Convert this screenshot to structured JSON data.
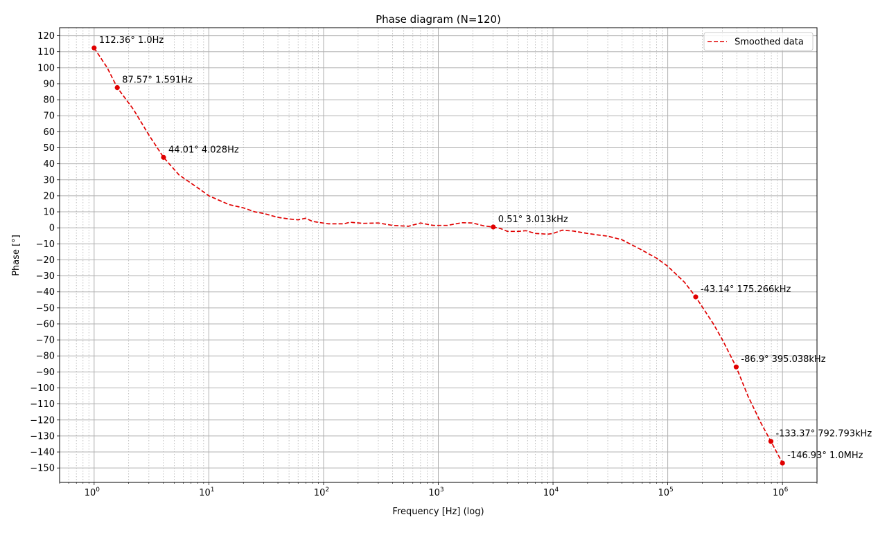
{
  "chart_data": {
    "type": "line",
    "title": "Phase diagram (N=120)",
    "xlabel": "Frequency [Hz] (log)",
    "ylabel": "Phase [°]",
    "xscale": "log",
    "xlim": [
      0.5,
      2000000
    ],
    "ylim": [
      -159,
      125
    ],
    "xticks": [
      {
        "value": 1,
        "base": "10",
        "exp": "0"
      },
      {
        "value": 10,
        "base": "10",
        "exp": "1"
      },
      {
        "value": 100,
        "base": "10",
        "exp": "2"
      },
      {
        "value": 1000,
        "base": "10",
        "exp": "3"
      },
      {
        "value": 10000,
        "base": "10",
        "exp": "4"
      },
      {
        "value": 100000,
        "base": "10",
        "exp": "5"
      },
      {
        "value": 1000000,
        "base": "10",
        "exp": "6"
      }
    ],
    "yticks": [
      {
        "value": 120,
        "label": "120"
      },
      {
        "value": 110,
        "label": "110"
      },
      {
        "value": 100,
        "label": "100"
      },
      {
        "value": 90,
        "label": "90"
      },
      {
        "value": 80,
        "label": "80"
      },
      {
        "value": 70,
        "label": "70"
      },
      {
        "value": 60,
        "label": "60"
      },
      {
        "value": 50,
        "label": "50"
      },
      {
        "value": 40,
        "label": "40"
      },
      {
        "value": 30,
        "label": "30"
      },
      {
        "value": 20,
        "label": "20"
      },
      {
        "value": 10,
        "label": "10"
      },
      {
        "value": 0,
        "label": "0"
      },
      {
        "value": -10,
        "label": "−10"
      },
      {
        "value": -20,
        "label": "−20"
      },
      {
        "value": -30,
        "label": "−30"
      },
      {
        "value": -40,
        "label": "−40"
      },
      {
        "value": -50,
        "label": "−50"
      },
      {
        "value": -60,
        "label": "−60"
      },
      {
        "value": -70,
        "label": "−70"
      },
      {
        "value": -80,
        "label": "−80"
      },
      {
        "value": -90,
        "label": "−90"
      },
      {
        "value": -100,
        "label": "−100"
      },
      {
        "value": -110,
        "label": "−110"
      },
      {
        "value": -120,
        "label": "−120"
      },
      {
        "value": -130,
        "label": "−130"
      },
      {
        "value": -140,
        "label": "−140"
      },
      {
        "value": -150,
        "label": "−150"
      }
    ],
    "grid": {
      "major": true,
      "minor": true
    },
    "legend_position": "top-right",
    "series": [
      {
        "name": "Smoothed data",
        "color": "#e00000",
        "line_style": "dashed",
        "points": [
          [
            1.0,
            112.36
          ],
          [
            1.3,
            100
          ],
          [
            1.591,
            87.57
          ],
          [
            2.2,
            74
          ],
          [
            3.0,
            58
          ],
          [
            4.028,
            44.01
          ],
          [
            5.5,
            33
          ],
          [
            8,
            25
          ],
          [
            10,
            20
          ],
          [
            15,
            14.5
          ],
          [
            20,
            12.5
          ],
          [
            25,
            10
          ],
          [
            30,
            9
          ],
          [
            40,
            6.5
          ],
          [
            50,
            5.5
          ],
          [
            60,
            5
          ],
          [
            70,
            6
          ],
          [
            80,
            4
          ],
          [
            110,
            2.5
          ],
          [
            150,
            2.5
          ],
          [
            170,
            3.5
          ],
          [
            220,
            2.8
          ],
          [
            300,
            3
          ],
          [
            400,
            1.5
          ],
          [
            550,
            1
          ],
          [
            700,
            3
          ],
          [
            900,
            1.5
          ],
          [
            1200,
            1.5
          ],
          [
            1600,
            3.2
          ],
          [
            2000,
            3
          ],
          [
            2500,
            1.2
          ],
          [
            3013,
            0.51
          ],
          [
            3500,
            -0.5
          ],
          [
            4000,
            -2.2
          ],
          [
            5000,
            -2.2
          ],
          [
            5800,
            -1.8
          ],
          [
            7000,
            -3.5
          ],
          [
            9000,
            -4
          ],
          [
            10000,
            -3.5
          ],
          [
            12000,
            -1.5
          ],
          [
            15000,
            -2
          ],
          [
            20000,
            -3.5
          ],
          [
            25000,
            -4.5
          ],
          [
            30000,
            -5.2
          ],
          [
            40000,
            -7.5
          ],
          [
            60000,
            -14
          ],
          [
            80000,
            -19
          ],
          [
            100000,
            -24
          ],
          [
            140000,
            -34
          ],
          [
            175266,
            -43.14
          ],
          [
            250000,
            -60
          ],
          [
            300000,
            -70
          ],
          [
            395038,
            -86.9
          ],
          [
            500000,
            -105
          ],
          [
            650000,
            -122
          ],
          [
            792793,
            -133.37
          ],
          [
            1000000,
            -146.93
          ]
        ]
      }
    ],
    "annotations": [
      {
        "x": 1.0,
        "y": 112.36,
        "text": "112.36° 1.0Hz"
      },
      {
        "x": 1.591,
        "y": 87.57,
        "text": "87.57° 1.591Hz"
      },
      {
        "x": 4.028,
        "y": 44.01,
        "text": "44.01° 4.028Hz"
      },
      {
        "x": 3013,
        "y": 0.51,
        "text": "0.51° 3.013kHz"
      },
      {
        "x": 175266,
        "y": -43.14,
        "text": "-43.14° 175.266kHz"
      },
      {
        "x": 395038,
        "y": -86.9,
        "text": "-86.9° 395.038kHz"
      },
      {
        "x": 792793,
        "y": -133.37,
        "text": "-133.37° 792.793kHz"
      },
      {
        "x": 1000000,
        "y": -146.93,
        "text": "-146.93° 1.0MHz"
      }
    ]
  }
}
